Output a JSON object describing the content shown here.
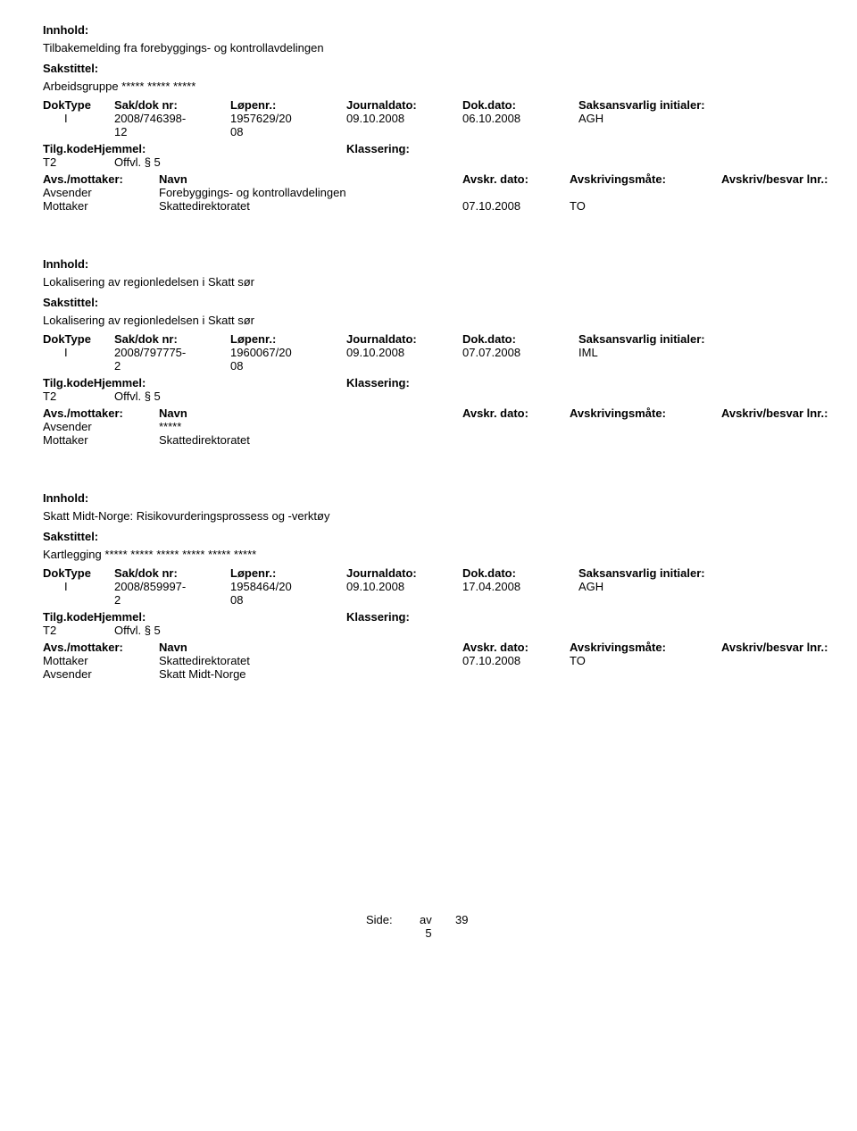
{
  "labels": {
    "innhold": "Innhold:",
    "sakstittel": "Sakstittel:",
    "doktype": "DokType",
    "sakdoknr": "Sak/dok nr:",
    "lopenr": "Løpenr.:",
    "journaldato": "Journaldato:",
    "dokdato": "Dok.dato:",
    "saksansvarlig": "Saksansvarlig initialer:",
    "tilgkode": "Tilg.kode",
    "hjemmel": "Hjemmel:",
    "tilgkodehjemmel": "Tilg.kodeHjemmel:",
    "klassering": "Klassering:",
    "avsmot": "Avs./mottaker:",
    "navn": "Navn",
    "avskrdato": "Avskr. dato:",
    "avskrivingsmate": "Avskrivingsmåte:",
    "avskrivbesvar": "Avskriv/besvar lnr.:",
    "avsender": "Avsender",
    "mottaker": "Mottaker",
    "side": "Side:",
    "av": "av"
  },
  "records": [
    {
      "innhold": "Tilbakemelding fra  forebyggings- og kontrollavdelingen",
      "sakstittel": "Arbeidsgruppe ***** ***** *****",
      "doktype": "I",
      "sakdok1": "2008/746398-",
      "sakdok2": "12",
      "lopenr1": "1957629/20",
      "lopenr2": "08",
      "journaldato": "09.10.2008",
      "dokdato": "06.10.2008",
      "initialer": "AGH",
      "tilgkode": "T2",
      "hjemmel": "Offvl. § 5",
      "parties": [
        {
          "role": "Avsender",
          "name": "Forebyggings- og kontrollavdelingen",
          "date": "",
          "mode": ""
        },
        {
          "role": "Mottaker",
          "name": "Skattedirektoratet",
          "date": "07.10.2008",
          "mode": "TO"
        }
      ]
    },
    {
      "innhold": "Lokalisering av regionledelsen i Skatt sør",
      "sakstittel": "Lokalisering av regionledelsen i Skatt sør",
      "doktype": "I",
      "sakdok1": "2008/797775-",
      "sakdok2": "2",
      "lopenr1": "1960067/20",
      "lopenr2": "08",
      "journaldato": "09.10.2008",
      "dokdato": "07.07.2008",
      "initialer": "IML",
      "tilgkode": "T2",
      "hjemmel": "Offvl. § 5",
      "parties": [
        {
          "role": "Avsender",
          "name": "*****",
          "date": "",
          "mode": ""
        },
        {
          "role": "Mottaker",
          "name": "Skattedirektoratet",
          "date": "",
          "mode": ""
        }
      ]
    },
    {
      "innhold": "Skatt Midt-Norge: Risikovurderingsprossess og -verktøy",
      "sakstittel": "Kartlegging ***** ***** ***** ***** ***** *****",
      "doktype": "I",
      "sakdok1": "2008/859997-",
      "sakdok2": "2",
      "lopenr1": "1958464/20",
      "lopenr2": "08",
      "journaldato": "09.10.2008",
      "dokdato": "17.04.2008",
      "initialer": "AGH",
      "tilgkode": "T2",
      "hjemmel": "Offvl. § 5",
      "parties": [
        {
          "role": "Mottaker",
          "name": "Skattedirektoratet",
          "date": "07.10.2008",
          "mode": "TO"
        },
        {
          "role": "Avsender",
          "name": "Skatt Midt-Norge",
          "date": "",
          "mode": ""
        }
      ]
    }
  ],
  "footer": {
    "page": "5",
    "total": "39"
  }
}
